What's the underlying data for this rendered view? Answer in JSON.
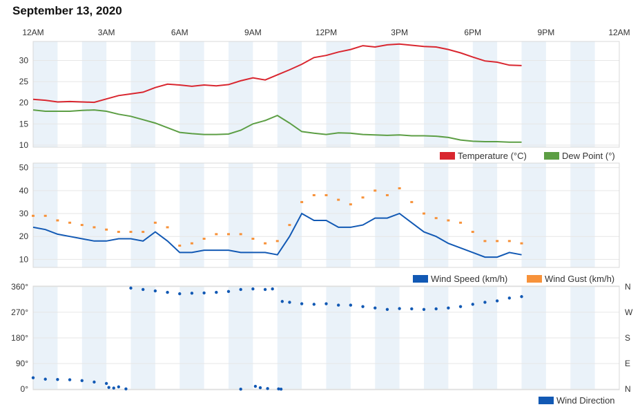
{
  "page": {
    "title": "September 13, 2020"
  },
  "chart_data": [
    {
      "type": "line",
      "name": "temperature-dewpoint",
      "x_unit": "hours since midnight",
      "xlim": [
        0,
        24
      ],
      "x_tick_labels": [
        "12AM",
        "3AM",
        "6AM",
        "9AM",
        "12PM",
        "3PM",
        "6PM",
        "9PM",
        "12AM"
      ],
      "ylim": [
        9.5,
        34.5
      ],
      "y_ticks": [
        10,
        15,
        20,
        25,
        30
      ],
      "y_tick_labels": [
        "10",
        "15",
        "20",
        "25",
        "30"
      ],
      "series": [
        {
          "name": "Temperature (°C)",
          "color": "#d9262f",
          "x": [
            0,
            0.5,
            1,
            1.5,
            2,
            2.5,
            3,
            3.5,
            4,
            4.5,
            5,
            5.5,
            6,
            6.5,
            7,
            7.5,
            8,
            8.5,
            9,
            9.5,
            10,
            10.5,
            11,
            11.5,
            12,
            12.5,
            13,
            13.5,
            14,
            14.5,
            15,
            15.5,
            16,
            16.5,
            17,
            17.5,
            18,
            18.5,
            19,
            19.5,
            20
          ],
          "values": [
            20.8,
            20.6,
            20.2,
            20.3,
            20.2,
            20.1,
            20.9,
            21.7,
            22.1,
            22.5,
            23.6,
            24.4,
            24.2,
            23.9,
            24.2,
            24,
            24.3,
            25.2,
            25.9,
            25.4,
            26.6,
            27.8,
            29.1,
            30.7,
            31.2,
            32,
            32.6,
            33.5,
            33.2,
            33.7,
            33.9,
            33.6,
            33.3,
            33.2,
            32.6,
            31.8,
            30.8,
            29.9,
            29.6,
            28.9,
            28.8
          ]
        },
        {
          "name": "Dew Point (°)",
          "color": "#5c9e44",
          "x": [
            0,
            0.5,
            1,
            1.5,
            2,
            2.5,
            3,
            3.5,
            4,
            4.5,
            5,
            5.5,
            6,
            6.5,
            7,
            7.5,
            8,
            8.5,
            9,
            9.5,
            10,
            10.5,
            11,
            11.5,
            12,
            12.5,
            13,
            13.5,
            14,
            14.5,
            15,
            15.5,
            16,
            16.5,
            17,
            17.5,
            18,
            18.5,
            19,
            19.5,
            20
          ],
          "values": [
            18.3,
            18,
            18,
            18,
            18.2,
            18.3,
            18,
            17.3,
            16.8,
            16,
            15.2,
            14.1,
            13,
            12.7,
            12.5,
            12.5,
            12.6,
            13.5,
            15,
            15.8,
            17,
            15.2,
            13.2,
            12.8,
            12.5,
            12.9,
            12.8,
            12.5,
            12.4,
            12.3,
            12.4,
            12.2,
            12.2,
            12.1,
            11.8,
            11.2,
            10.9,
            10.8,
            10.8,
            10.7,
            10.7
          ]
        }
      ]
    },
    {
      "type": "line",
      "name": "wind-speed-gust",
      "x_unit": "hours since midnight",
      "xlim": [
        0,
        24
      ],
      "ylim": [
        6.5,
        52
      ],
      "y_ticks": [
        10,
        20,
        30,
        40,
        50
      ],
      "y_tick_labels": [
        "10",
        "20",
        "30",
        "40",
        "50"
      ],
      "series": [
        {
          "name": "Wind Speed (km/h)",
          "color": "#1259b4",
          "x": [
            0,
            0.5,
            1,
            1.5,
            2,
            2.5,
            3,
            3.5,
            4,
            4.5,
            5,
            5.5,
            6,
            6.5,
            7,
            7.5,
            8,
            8.5,
            9,
            9.5,
            10,
            10.5,
            11,
            11.5,
            12,
            12.5,
            13,
            13.5,
            14,
            14.5,
            15,
            15.5,
            16,
            16.5,
            17,
            17.5,
            18,
            18.5,
            19,
            19.5,
            20
          ],
          "values": [
            24,
            23,
            21,
            20,
            19,
            18,
            18,
            19,
            19,
            18,
            22,
            18,
            13,
            13,
            14,
            14,
            14,
            13,
            13,
            13,
            12,
            20,
            30,
            27,
            27,
            24,
            24,
            25,
            28,
            28,
            30,
            26,
            22,
            20,
            17,
            15,
            13,
            11,
            11,
            13,
            12
          ]
        },
        {
          "name": "Wind Gust (km/h)",
          "color": "#f7923a",
          "x": [
            0,
            0.5,
            1,
            1.5,
            2,
            2.5,
            3,
            3.5,
            4,
            4.5,
            5,
            5.5,
            6,
            6.5,
            7,
            7.5,
            8,
            8.5,
            9,
            9.5,
            10,
            10.5,
            11,
            11.5,
            12,
            12.5,
            13,
            13.5,
            14,
            14.5,
            15,
            15.5,
            16,
            16.5,
            17,
            17.5,
            18,
            18.5,
            19,
            19.5,
            20
          ],
          "values": [
            29,
            29,
            27,
            26,
            25,
            24,
            23,
            22,
            22,
            22,
            26,
            24,
            16,
            17,
            19,
            21,
            21,
            21,
            19,
            17,
            18,
            25,
            35,
            38,
            38,
            36,
            34,
            37,
            40,
            38,
            41,
            35,
            30,
            28,
            27,
            26,
            22,
            18,
            18,
            18,
            17
          ]
        }
      ]
    },
    {
      "type": "scatter",
      "name": "wind-direction",
      "x_unit": "hours since midnight",
      "xlim": [
        0,
        24
      ],
      "ylim": [
        -2,
        362
      ],
      "y_ticks": [
        0,
        90,
        180,
        270,
        360
      ],
      "y_tick_labels": [
        "0°",
        "90°",
        "180°",
        "270°",
        "360°"
      ],
      "y_right_labels": [
        "N",
        "E",
        "S",
        "W",
        "N"
      ],
      "series": [
        {
          "name": "Wind Direction",
          "color": "#1259b4",
          "x": [
            0,
            0.5,
            1,
            1.5,
            2,
            2.5,
            3,
            3.5,
            4,
            4.5,
            5,
            5.5,
            6,
            6.5,
            7,
            7.5,
            8,
            8.5,
            9,
            9.5,
            9.8,
            10.2,
            10.5,
            11,
            11.5,
            12,
            12.5,
            13,
            13.5,
            14,
            14.5,
            15,
            15.5,
            16,
            16.5,
            17,
            17.5,
            18,
            18.5,
            19,
            19.5,
            20
          ],
          "values": [
            40,
            35,
            34,
            33,
            30,
            25,
            20,
            8,
            355,
            350,
            345,
            340,
            335,
            337,
            338,
            340,
            343,
            350,
            352,
            350,
            352,
            308,
            305,
            300,
            298,
            300,
            295,
            295,
            290,
            285,
            280,
            283,
            282,
            280,
            282,
            285,
            290,
            298,
            305,
            310,
            320,
            325
          ]
        },
        {
          "name": "Wind Direction (low)",
          "color": "#1259b4",
          "x": [
            3.1,
            3.3,
            3.8,
            8.5,
            9.1,
            9.3,
            9.6,
            10.05,
            10.15
          ],
          "values": [
            6,
            4,
            1,
            0,
            10,
            5,
            2,
            1,
            0
          ]
        }
      ]
    }
  ],
  "legend": {
    "temperature": "Temperature (°C)",
    "dewpoint": "Dew Point (°)",
    "wind_speed": "Wind Speed (km/h)",
    "wind_gust": "Wind Gust (km/h)",
    "wind_direction": "Wind Direction"
  },
  "colors": {
    "temperature": "#d9262f",
    "dewpoint": "#5c9e44",
    "speed": "#1259b4",
    "gust": "#f7923a",
    "band": "#eaf2f9",
    "grid": "#e6e6e6"
  }
}
